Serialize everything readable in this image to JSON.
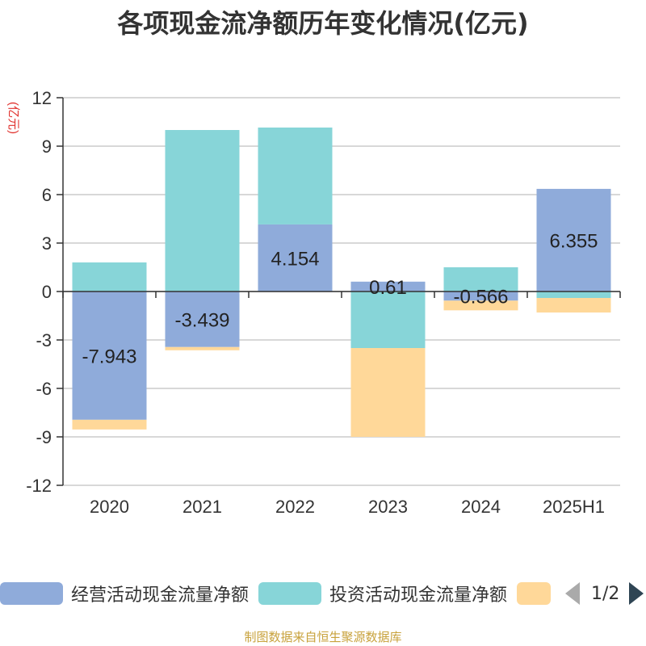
{
  "title": "各项现金流净额历年变化情况(亿元)",
  "unit_label": "(亿元)",
  "source": "制图数据来自恒生聚源数据库",
  "legend": {
    "items": [
      {
        "label": "经营活动现金流量净额",
        "color": "#8fabda"
      },
      {
        "label": "投资活动现金流量净额",
        "color": "#87d5d8"
      },
      {
        "label": "",
        "color": "#ffd899"
      }
    ],
    "page": "1/2"
  },
  "chart_data": {
    "type": "bar",
    "stacked": true,
    "categories": [
      "2020",
      "2021",
      "2022",
      "2023",
      "2024",
      "2025H1"
    ],
    "ylim": [
      -12,
      12
    ],
    "yticks": [
      -12,
      -9,
      -6,
      -3,
      0,
      3,
      6,
      9,
      12
    ],
    "grid": true,
    "legend_position": "bottom",
    "series": [
      {
        "name": "经营活动现金流量净额",
        "color": "#8fabda",
        "values": [
          -7.943,
          -3.439,
          4.154,
          0.61,
          -0.566,
          6.355
        ],
        "labels": [
          "-7.943",
          "-3.439",
          "4.154",
          "0.61",
          "-0.566",
          "6.355"
        ]
      },
      {
        "name": "投资活动现金流量净额",
        "color": "#87d5d8",
        "values": [
          1.8,
          10.0,
          6.0,
          -3.5,
          1.5,
          -0.4
        ]
      },
      {
        "color": "#ffd899",
        "values": [
          -0.6,
          -0.2,
          0,
          -5.5,
          -0.6,
          -0.9
        ]
      }
    ]
  }
}
